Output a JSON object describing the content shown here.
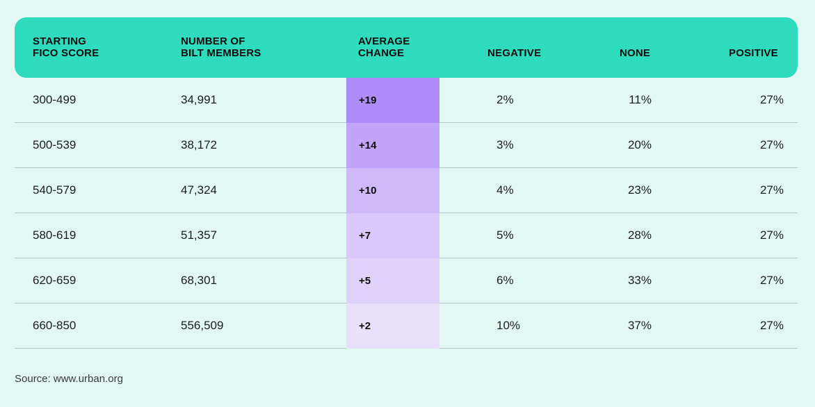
{
  "table": {
    "headers": {
      "starting_fico": "STARTING\nFICO SCORE",
      "members": "NUMBER OF\nBILT MEMBERS",
      "average_change": "AVERAGE\nCHANGE",
      "negative": "NEGATIVE",
      "none": "NONE",
      "positive": "POSITIVE"
    },
    "rows": [
      {
        "fico": "300-499",
        "members": "34,991",
        "change": "+19",
        "negative": "2%",
        "none": "11%",
        "positive": "27%"
      },
      {
        "fico": "500-539",
        "members": "38,172",
        "change": "+14",
        "negative": "3%",
        "none": "20%",
        "positive": "27%"
      },
      {
        "fico": "540-579",
        "members": "47,324",
        "change": "+10",
        "negative": "4%",
        "none": "23%",
        "positive": "27%"
      },
      {
        "fico": "580-619",
        "members": "51,357",
        "change": "+7",
        "negative": "5%",
        "none": "28%",
        "positive": "27%"
      },
      {
        "fico": "620-659",
        "members": "68,301",
        "change": "+5",
        "negative": "6%",
        "none": "33%",
        "positive": "27%"
      },
      {
        "fico": "660-850",
        "members": "556,509",
        "change": "+2",
        "negative": "10%",
        "none": "37%",
        "positive": "27%"
      }
    ]
  },
  "chart_data": {
    "type": "table",
    "columns": [
      "STARTING FICO SCORE",
      "NUMBER OF BILT MEMBERS",
      "AVERAGE CHANGE",
      "NEGATIVE",
      "NONE",
      "POSITIVE"
    ],
    "rows": [
      [
        "300-499",
        34991,
        19,
        2,
        11,
        27
      ],
      [
        "500-539",
        38172,
        14,
        3,
        20,
        27
      ],
      [
        "540-579",
        47324,
        10,
        4,
        23,
        27
      ],
      [
        "580-619",
        51357,
        7,
        5,
        28,
        27
      ],
      [
        "620-659",
        68301,
        5,
        6,
        33,
        27
      ],
      [
        "660-850",
        556509,
        2,
        10,
        37,
        27
      ]
    ],
    "highlight_column": "AVERAGE CHANGE",
    "highlight_scale": {
      "min_color": "#e9e1fb",
      "max_color": "#b08cfa"
    }
  },
  "colors": {
    "background": "#e1f8f3",
    "header": "#2edbbd",
    "highlight_max": "#b08cfa",
    "highlight_min": "#e9e1fb"
  },
  "source": "Source:  www.urban.org"
}
